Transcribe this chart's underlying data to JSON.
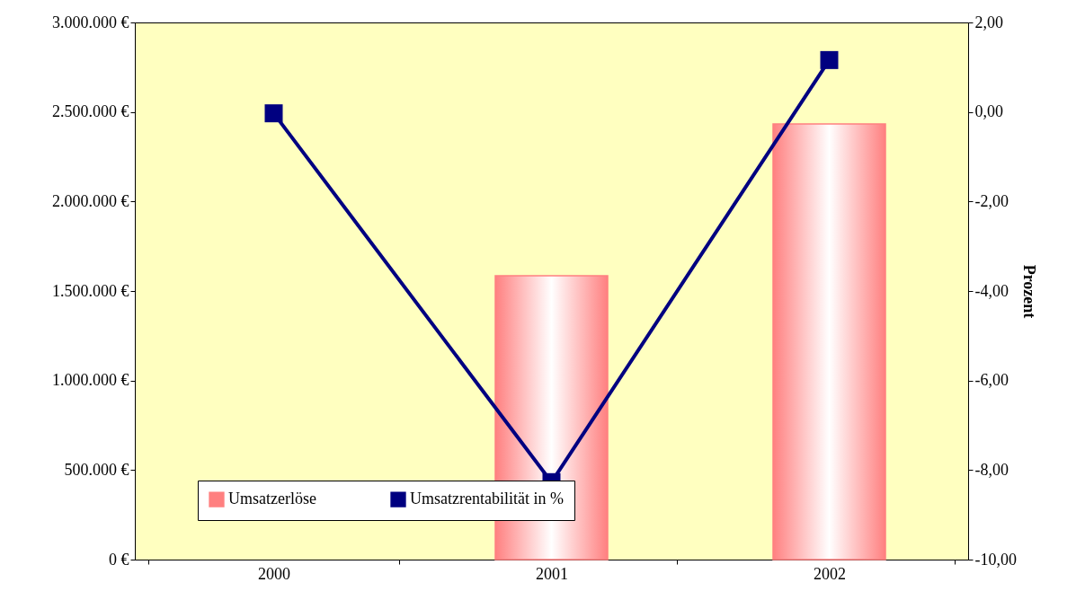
{
  "chart_data": {
    "type": "bar",
    "categories": [
      "2000",
      "2001",
      "2002"
    ],
    "y2label": "Prozent",
    "legend": "bottom",
    "grid": false,
    "series": [
      {
        "name": "Umsatzerlöse",
        "color": "#ff8080",
        "values": [
          null,
          1585000,
          2433000
        ]
      },
      {
        "name": "Umsatzrentabilität in %",
        "type": "line",
        "axis": "y2",
        "marker": "square",
        "color": "#000080",
        "values": [
          -0.03,
          -8.27,
          1.16
        ]
      }
    ],
    "ylim": [
      0,
      3000000
    ],
    "yticks": [
      {
        "value": 0,
        "label": "0 €"
      },
      {
        "value": 500000,
        "label": "500.000 €"
      },
      {
        "value": 1000000,
        "label": "1.000.000 €"
      },
      {
        "value": 1500000,
        "label": "1.500.000 €"
      },
      {
        "value": 2000000,
        "label": "2.000.000 €"
      },
      {
        "value": 2500000,
        "label": "2.500.000 €"
      },
      {
        "value": 3000000,
        "label": "3.000.000 €"
      }
    ],
    "y2lim": [
      -10,
      2
    ],
    "y2ticks": [
      {
        "value": -10,
        "label": "-10,00"
      },
      {
        "value": -8,
        "label": "-8,00"
      },
      {
        "value": -6,
        "label": "-6,00"
      },
      {
        "value": -4,
        "label": "-4,00"
      },
      {
        "value": -2,
        "label": "-2,00"
      },
      {
        "value": 0,
        "label": "0,00"
      },
      {
        "value": 2,
        "label": "2,00"
      }
    ]
  }
}
